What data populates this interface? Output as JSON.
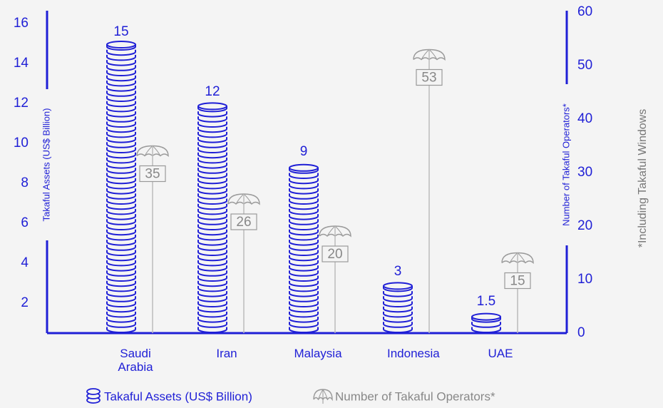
{
  "chart_data": {
    "type": "bar",
    "categories": [
      "Saudi Arabia",
      "Iran",
      "Malaysia",
      "Indonesia",
      "UAE"
    ],
    "series": [
      {
        "name": "Takaful Assets (US$ Billion)",
        "color": "#1f1fd6",
        "values": [
          15,
          12,
          9,
          3,
          1.5
        ]
      },
      {
        "name": "Number of Takaful Operators*",
        "color": "#9a9a9a",
        "values": [
          35,
          26,
          20,
          53,
          15
        ],
        "axis": "y2"
      }
    ],
    "ylabel": "Takaful Assets (US$ Billion)",
    "y2label": "Number of Takaful Operators*",
    "note": "*Including Takaful Windows",
    "ylim": [
      0.5,
      16.64
    ],
    "yticks": [
      2,
      4,
      6,
      8,
      10,
      12,
      14,
      16
    ],
    "y2lim": [
      0,
      60
    ],
    "y2ticks": [
      0,
      10,
      20,
      30,
      40,
      50,
      60
    ],
    "grid": false
  }
}
